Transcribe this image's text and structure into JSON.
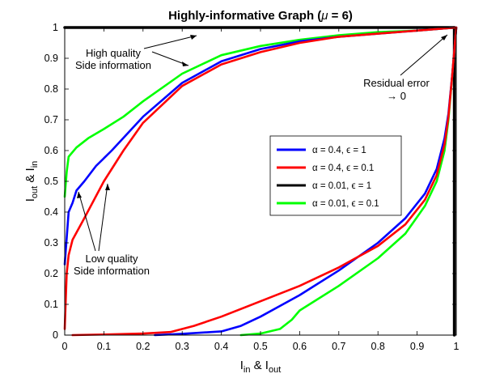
{
  "chart_data": {
    "type": "line",
    "title_prefix": "Highly-informative Graph (",
    "title_mu": "μ",
    "title_suffix": " = 6)",
    "xlabel": {
      "main1": "I",
      "sub1": "in",
      "amp": " & ",
      "main2": "I",
      "sub2": "out"
    },
    "ylabel": {
      "main1": "I",
      "sub1": "out",
      "amp": " & ",
      "main2": "I",
      "sub2": "in"
    },
    "xlim": [
      0,
      1
    ],
    "ylim": [
      0,
      1
    ],
    "xticks": [
      0,
      0.1,
      0.2,
      0.3,
      0.4,
      0.5,
      0.6,
      0.7,
      0.8,
      0.9,
      1
    ],
    "yticks": [
      0,
      0.1,
      0.2,
      0.3,
      0.4,
      0.5,
      0.6,
      0.7,
      0.8,
      0.9,
      1
    ],
    "xtick_labels": [
      "0",
      "0.1",
      "0.2",
      "0.3",
      "0.4",
      "0.5",
      "0.6",
      "0.7",
      "0.8",
      "0.9",
      "1"
    ],
    "ytick_labels": [
      "0",
      "0.1",
      "0.2",
      "0.3",
      "0.4",
      "0.5",
      "0.6",
      "0.7",
      "0.8",
      "0.9",
      "1"
    ],
    "grid": false,
    "legend_position": "right-center",
    "series": [
      {
        "name": "α = 0.4, ϵ = 1",
        "color": "#0000ff",
        "upper": [
          [
            0,
            0.23
          ],
          [
            0.01,
            0.4
          ],
          [
            0.02,
            0.43
          ],
          [
            0.03,
            0.47
          ],
          [
            0.05,
            0.5
          ],
          [
            0.08,
            0.55
          ],
          [
            0.12,
            0.6
          ],
          [
            0.2,
            0.71
          ],
          [
            0.3,
            0.82
          ],
          [
            0.4,
            0.89
          ],
          [
            0.5,
            0.93
          ],
          [
            0.6,
            0.955
          ],
          [
            0.7,
            0.97
          ],
          [
            0.8,
            0.98
          ],
          [
            0.9,
            0.99
          ],
          [
            1.0,
            1.0
          ]
        ],
        "lower": [
          [
            0.23,
            0
          ],
          [
            0.3,
            0.004
          ],
          [
            0.4,
            0.012
          ],
          [
            0.45,
            0.03
          ],
          [
            0.5,
            0.06
          ],
          [
            0.6,
            0.13
          ],
          [
            0.7,
            0.21
          ],
          [
            0.8,
            0.3
          ],
          [
            0.87,
            0.38
          ],
          [
            0.92,
            0.46
          ],
          [
            0.95,
            0.54
          ],
          [
            0.97,
            0.64
          ],
          [
            0.98,
            0.72
          ],
          [
            0.99,
            0.85
          ],
          [
            1.0,
            1.0
          ]
        ]
      },
      {
        "name": "α = 0.4, ϵ = 0.1",
        "color": "#ff0000",
        "upper": [
          [
            0,
            0.02
          ],
          [
            0.005,
            0.2
          ],
          [
            0.01,
            0.26
          ],
          [
            0.02,
            0.31
          ],
          [
            0.05,
            0.38
          ],
          [
            0.1,
            0.5
          ],
          [
            0.15,
            0.6
          ],
          [
            0.2,
            0.69
          ],
          [
            0.3,
            0.81
          ],
          [
            0.4,
            0.88
          ],
          [
            0.5,
            0.92
          ],
          [
            0.6,
            0.95
          ],
          [
            0.7,
            0.97
          ],
          [
            0.8,
            0.98
          ],
          [
            0.9,
            0.99
          ],
          [
            1.0,
            1.0
          ]
        ],
        "lower": [
          [
            0.02,
            0
          ],
          [
            0.1,
            0.002
          ],
          [
            0.2,
            0.005
          ],
          [
            0.27,
            0.01
          ],
          [
            0.33,
            0.03
          ],
          [
            0.4,
            0.06
          ],
          [
            0.5,
            0.11
          ],
          [
            0.6,
            0.16
          ],
          [
            0.7,
            0.22
          ],
          [
            0.8,
            0.29
          ],
          [
            0.87,
            0.36
          ],
          [
            0.92,
            0.44
          ],
          [
            0.95,
            0.52
          ],
          [
            0.97,
            0.62
          ],
          [
            0.98,
            0.71
          ],
          [
            0.99,
            0.85
          ],
          [
            1.0,
            1.0
          ]
        ]
      },
      {
        "name": "α = 0.01, ϵ = 1",
        "color": "#000000",
        "upper": [
          [
            0,
            1.0
          ],
          [
            0.995,
            1.0
          ]
        ],
        "lower": [
          [
            0.995,
            0
          ],
          [
            0.995,
            1.0
          ]
        ]
      },
      {
        "name": "α = 0.01, ϵ = 0.1",
        "color": "#00ff00",
        "upper": [
          [
            0,
            0.45
          ],
          [
            0.005,
            0.53
          ],
          [
            0.01,
            0.58
          ],
          [
            0.03,
            0.61
          ],
          [
            0.06,
            0.64
          ],
          [
            0.1,
            0.67
          ],
          [
            0.15,
            0.71
          ],
          [
            0.2,
            0.76
          ],
          [
            0.3,
            0.85
          ],
          [
            0.4,
            0.91
          ],
          [
            0.5,
            0.94
          ],
          [
            0.6,
            0.96
          ],
          [
            0.7,
            0.975
          ],
          [
            0.8,
            0.985
          ],
          [
            0.9,
            0.99
          ],
          [
            1.0,
            1.0
          ]
        ],
        "lower": [
          [
            0.45,
            0
          ],
          [
            0.5,
            0.005
          ],
          [
            0.55,
            0.02
          ],
          [
            0.58,
            0.05
          ],
          [
            0.6,
            0.08
          ],
          [
            0.7,
            0.16
          ],
          [
            0.8,
            0.25
          ],
          [
            0.87,
            0.33
          ],
          [
            0.92,
            0.42
          ],
          [
            0.95,
            0.5
          ],
          [
            0.97,
            0.6
          ],
          [
            0.98,
            0.7
          ],
          [
            0.99,
            0.85
          ],
          [
            1.0,
            1.0
          ]
        ]
      }
    ],
    "annotations": {
      "high_quality": [
        "High quality",
        "Side information"
      ],
      "low_quality": [
        "Low quality",
        "Side information"
      ],
      "residual": [
        "Residual error",
        "→ 0"
      ]
    }
  }
}
